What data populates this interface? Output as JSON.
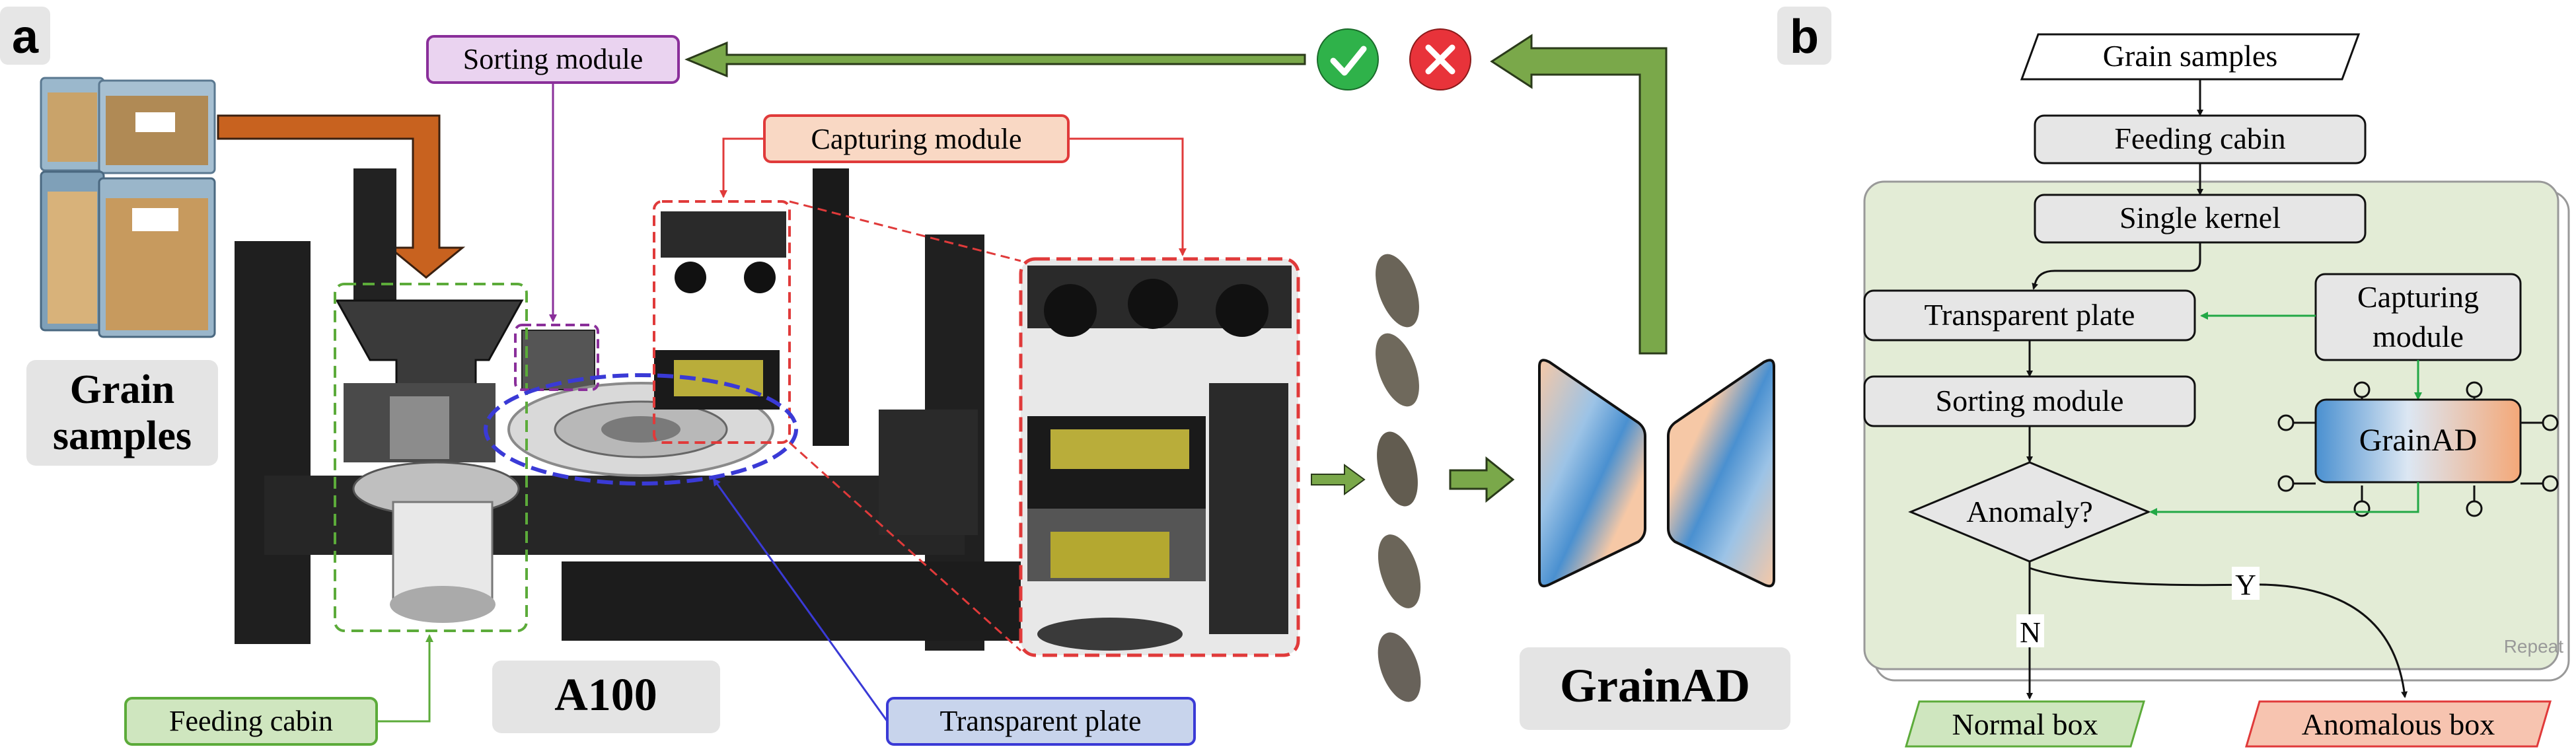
{
  "panel_a": {
    "letter": "a",
    "grain_samples_label": [
      "Grain",
      "samples"
    ],
    "sorting_module": "Sorting module",
    "capturing_module": "Capturing module",
    "feeding_cabin": "Feeding cabin",
    "device_name": "A100",
    "transparent_plate": "Transparent plate",
    "model_name": "GrainAD",
    "check_icon": "check-icon",
    "cross_icon": "cross-icon"
  },
  "panel_b": {
    "letter": "b",
    "grain_samples": "Grain samples",
    "feeding_cabin": "Feeding cabin",
    "single_kernel": "Single kernel",
    "transparent_plate": "Transparent plate",
    "capturing_module": [
      "Capturing",
      "module"
    ],
    "sorting_module": "Sorting module",
    "grainad": "GrainAD",
    "anomaly": "Anomaly?",
    "no": "N",
    "yes": "Y",
    "normal_box": "Normal box",
    "anomalous_box": "Anomalous box",
    "repeat": "Repeat"
  },
  "colors": {
    "green_arrow": "#7aa84a",
    "orange_arrow": "#c8621f",
    "purple": "#8a2f9a",
    "red": "#e03a3a",
    "blue": "#3a3ad6",
    "flow_green": "#22a845",
    "light_green_bg": "#e3ecd6"
  }
}
